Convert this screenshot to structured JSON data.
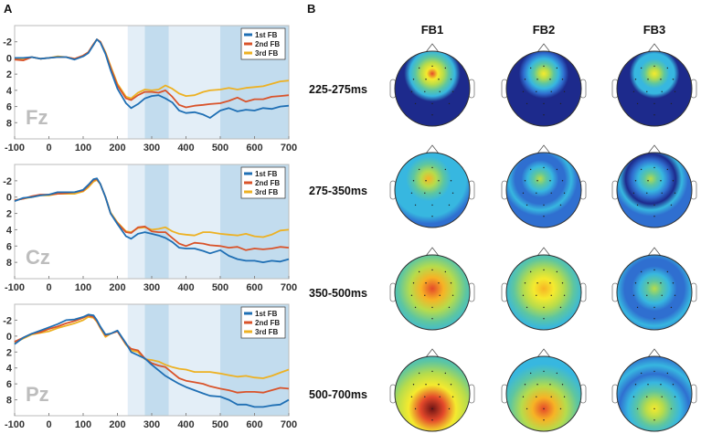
{
  "panel_a_letter": "A",
  "panel_b_letter": "B",
  "colors": {
    "1st FB": "#1f6fb4",
    "2nd FB": "#d9532a",
    "3rd FB": "#edb123",
    "window_light": "#e3eef7",
    "window_dark": "#c2dcee"
  },
  "chart_data": [
    {
      "type": "line",
      "electrode": "Fz",
      "xlim": [
        -100,
        700
      ],
      "ylim": [
        -4,
        10
      ],
      "y_reversed": true,
      "xticks": [
        -100,
        0,
        100,
        200,
        300,
        400,
        500,
        600,
        700
      ],
      "yticks": [
        -2,
        0,
        2,
        4,
        6,
        8
      ],
      "legend": [
        "1st FB",
        "2nd FB",
        "3rd FB"
      ],
      "legend_position": "top-right",
      "shaded_windows": [
        {
          "from": 230,
          "to": 280,
          "shade": "light"
        },
        {
          "from": 280,
          "to": 350,
          "shade": "dark"
        },
        {
          "from": 350,
          "to": 500,
          "shade": "light"
        },
        {
          "from": 500,
          "to": 700,
          "shade": "dark"
        }
      ],
      "x": [
        -100,
        -75,
        -50,
        -25,
        0,
        25,
        50,
        75,
        100,
        115,
        130,
        140,
        150,
        165,
        180,
        200,
        225,
        240,
        260,
        280,
        300,
        320,
        340,
        360,
        380,
        400,
        425,
        450,
        470,
        500,
        525,
        550,
        575,
        600,
        625,
        650,
        675,
        700
      ],
      "series": [
        {
          "name": "1st FB",
          "values": [
            0,
            0,
            -0.1,
            0.1,
            0,
            -0.1,
            -0.1,
            0.2,
            -0.2,
            -0.6,
            -1.6,
            -2.3,
            -1.9,
            -0.5,
            1.5,
            3.8,
            5.6,
            6.2,
            5.7,
            5.0,
            4.7,
            4.6,
            5.0,
            5.5,
            6.5,
            6.8,
            6.7,
            7.0,
            7.4,
            6.5,
            6.2,
            6.6,
            6.4,
            6.5,
            6.2,
            6.3,
            6.0,
            5.9
          ]
        },
        {
          "name": "2nd FB",
          "values": [
            0.2,
            0.3,
            -0.1,
            0.1,
            0,
            -0.1,
            -0.1,
            0.1,
            -0.3,
            -0.7,
            -1.7,
            -2.3,
            -2.0,
            -0.6,
            1.2,
            3.4,
            5.0,
            5.2,
            4.6,
            4.2,
            4.2,
            4.3,
            4.0,
            4.8,
            5.8,
            6.1,
            5.9,
            5.8,
            5.7,
            5.6,
            5.3,
            4.9,
            5.4,
            5.1,
            5.1,
            4.8,
            4.7,
            4.6
          ]
        },
        {
          "name": "3rd FB",
          "values": [
            0.1,
            0.1,
            -0.1,
            0.1,
            0,
            -0.2,
            -0.1,
            0.1,
            -0.3,
            -0.7,
            -1.7,
            -2.3,
            -2.0,
            -0.7,
            1.0,
            3.2,
            4.8,
            5.0,
            4.3,
            3.9,
            4.0,
            3.9,
            3.4,
            3.8,
            4.4,
            4.7,
            4.6,
            4.2,
            4.0,
            3.9,
            3.7,
            3.9,
            3.7,
            3.6,
            3.5,
            3.2,
            2.9,
            2.8
          ]
        }
      ]
    },
    {
      "type": "line",
      "electrode": "Cz",
      "xlim": [
        -100,
        700
      ],
      "ylim": [
        -4,
        10
      ],
      "y_reversed": true,
      "xticks": [
        -100,
        0,
        100,
        200,
        300,
        400,
        500,
        600,
        700
      ],
      "yticks": [
        -2,
        0,
        2,
        4,
        6,
        8
      ],
      "legend": [
        "1st FB",
        "2nd FB",
        "3rd FB"
      ],
      "legend_position": "top-right",
      "shaded_windows": [
        {
          "from": 230,
          "to": 280,
          "shade": "light"
        },
        {
          "from": 280,
          "to": 350,
          "shade": "dark"
        },
        {
          "from": 350,
          "to": 500,
          "shade": "light"
        },
        {
          "from": 500,
          "to": 700,
          "shade": "dark"
        }
      ],
      "x": [
        -100,
        -75,
        -50,
        -25,
        0,
        25,
        50,
        75,
        100,
        115,
        130,
        140,
        150,
        165,
        180,
        200,
        225,
        240,
        260,
        280,
        300,
        320,
        340,
        360,
        380,
        400,
        425,
        450,
        470,
        500,
        525,
        550,
        575,
        600,
        625,
        650,
        675,
        700
      ],
      "series": [
        {
          "name": "1st FB",
          "values": [
            0.5,
            0.1,
            0,
            -0.2,
            -0.3,
            -0.6,
            -0.6,
            -0.6,
            -0.9,
            -1.5,
            -2.2,
            -2.3,
            -1.6,
            0,
            2,
            3.3,
            4.8,
            5.1,
            4.5,
            4.3,
            4.5,
            4.7,
            5.0,
            5.5,
            6.2,
            6.3,
            6.3,
            6.6,
            6.9,
            6.5,
            7.2,
            7.6,
            7.8,
            7.8,
            8.0,
            7.8,
            7.9,
            7.6
          ]
        },
        {
          "name": "2nd FB",
          "values": [
            0.4,
            0.2,
            -0.1,
            -0.3,
            -0.3,
            -0.4,
            -0.5,
            -0.6,
            -0.8,
            -1.4,
            -2.1,
            -2.2,
            -1.6,
            0,
            2,
            3.2,
            4.3,
            4.4,
            3.7,
            3.6,
            4.2,
            4.3,
            4.3,
            5.0,
            5.7,
            6.0,
            5.6,
            5.7,
            5.9,
            6.0,
            6.2,
            6.1,
            6.5,
            6.3,
            6.4,
            6.3,
            6.1,
            6.2
          ]
        },
        {
          "name": "3rd FB",
          "values": [
            0.4,
            0.2,
            0,
            -0.2,
            -0.2,
            -0.4,
            -0.4,
            -0.4,
            -0.7,
            -1.2,
            -1.9,
            -2.1,
            -1.6,
            0,
            1.9,
            3.1,
            4.2,
            4.3,
            3.8,
            3.7,
            4.0,
            3.9,
            3.7,
            4.2,
            4.5,
            4.6,
            4.7,
            4.3,
            4.3,
            4.5,
            4.6,
            4.7,
            4.5,
            4.8,
            4.9,
            4.6,
            4.1,
            4.0
          ]
        }
      ]
    },
    {
      "type": "line",
      "electrode": "Pz",
      "xlim": [
        -100,
        700
      ],
      "ylim": [
        -4,
        10
      ],
      "y_reversed": true,
      "xticks": [
        -100,
        0,
        100,
        200,
        300,
        400,
        500,
        600,
        700
      ],
      "yticks": [
        -2,
        0,
        2,
        4,
        6,
        8
      ],
      "legend": [
        "1st FB",
        "2nd FB",
        "3rd FB"
      ],
      "legend_position": "top-right",
      "shaded_windows": [
        {
          "from": 230,
          "to": 280,
          "shade": "light"
        },
        {
          "from": 280,
          "to": 350,
          "shade": "dark"
        },
        {
          "from": 350,
          "to": 500,
          "shade": "light"
        },
        {
          "from": 500,
          "to": 700,
          "shade": "dark"
        }
      ],
      "x": [
        -100,
        -75,
        -50,
        -25,
        0,
        25,
        50,
        75,
        100,
        115,
        130,
        140,
        150,
        165,
        180,
        200,
        225,
        240,
        260,
        280,
        300,
        320,
        340,
        360,
        380,
        400,
        425,
        450,
        470,
        500,
        525,
        550,
        575,
        600,
        625,
        650,
        675,
        700
      ],
      "series": [
        {
          "name": "1st FB",
          "values": [
            1.0,
            0.2,
            -0.3,
            -0.7,
            -1.1,
            -1.5,
            -2.0,
            -2.1,
            -2.4,
            -2.7,
            -2.6,
            -2.0,
            -1.2,
            -0.2,
            -0.3,
            -0.7,
            0.9,
            2.0,
            2.4,
            2.8,
            3.6,
            4.3,
            5.0,
            5.5,
            6.0,
            6.4,
            6.8,
            7.2,
            7.5,
            7.6,
            8.0,
            8.6,
            8.6,
            8.9,
            8.9,
            8.7,
            8.6,
            8.0
          ]
        },
        {
          "name": "2nd FB",
          "values": [
            0.7,
            0.2,
            -0.3,
            -0.5,
            -0.9,
            -1.2,
            -1.6,
            -1.9,
            -2.3,
            -2.6,
            -2.4,
            -1.9,
            -1.1,
            -0.1,
            -0.3,
            -0.6,
            1.0,
            1.6,
            1.8,
            2.8,
            3.4,
            3.7,
            3.9,
            4.6,
            5.3,
            5.6,
            5.8,
            6.0,
            6.3,
            6.6,
            6.8,
            7.1,
            7.0,
            7.0,
            7.1,
            6.8,
            6.5,
            6.6
          ]
        },
        {
          "name": "3rd FB",
          "values": [
            0.8,
            0.3,
            -0.2,
            -0.4,
            -0.6,
            -1.0,
            -1.3,
            -1.6,
            -2.0,
            -2.4,
            -2.3,
            -1.8,
            -1.0,
            0.1,
            -0.3,
            -0.6,
            1.1,
            1.8,
            2.0,
            2.9,
            3.0,
            3.2,
            3.6,
            3.9,
            4.1,
            4.2,
            4.5,
            4.5,
            4.5,
            4.7,
            4.9,
            5.1,
            5.0,
            5.2,
            5.3,
            5.0,
            4.6,
            4.2
          ]
        }
      ]
    },
    {
      "type": "heatmap",
      "description_kind": "scalp-topography",
      "columns": [
        "FB1",
        "FB2",
        "FB3"
      ],
      "rows": [
        "225-275ms",
        "275-350ms",
        "350-500ms",
        "500-700ms"
      ],
      "peak_intensity": [
        [
          0.88,
          0.74,
          0.76
        ],
        [
          0.78,
          0.64,
          0.6
        ],
        [
          0.9,
          0.84,
          0.62
        ],
        [
          1.0,
          0.9,
          0.7
        ]
      ]
    }
  ]
}
